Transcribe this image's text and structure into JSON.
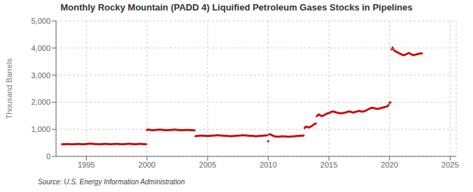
{
  "chart_data": {
    "type": "scatter",
    "title": "Monthly Rocky Mountain (PADD 4) Liquified Petroleum Gases Stocks in Pipelines",
    "ylabel": "Thousand Barrels",
    "annotations": [
      "Source: U.S. Energy Information Administration"
    ],
    "color": "#cc0000",
    "grid": true,
    "xlim": [
      1992.5,
      2025.5
    ],
    "xticks": [
      1995,
      2000,
      2005,
      2010,
      2015,
      2020,
      2025
    ],
    "ylim": [
      0,
      5000
    ],
    "yticks": [
      0,
      {
        "value": 1000,
        "label": "1,000"
      },
      {
        "value": 2000,
        "label": "2,000"
      },
      {
        "value": 3000,
        "label": "3,000"
      },
      {
        "value": 4000,
        "label": "4,000"
      },
      {
        "value": 5000,
        "label": "5,000"
      }
    ],
    "x": [
      1993.0,
      1993.08,
      1993.17,
      1993.25,
      1993.33,
      1993.42,
      1993.5,
      1993.58,
      1993.67,
      1993.75,
      1993.83,
      1993.92,
      1994.0,
      1994.08,
      1994.17,
      1994.25,
      1994.33,
      1994.42,
      1994.5,
      1994.58,
      1994.67,
      1994.75,
      1994.83,
      1994.92,
      1995.0,
      1995.08,
      1995.17,
      1995.25,
      1995.33,
      1995.42,
      1995.5,
      1995.58,
      1995.67,
      1995.75,
      1995.83,
      1995.92,
      1996.0,
      1996.08,
      1996.17,
      1996.25,
      1996.33,
      1996.42,
      1996.5,
      1996.58,
      1996.67,
      1996.75,
      1996.83,
      1996.92,
      1997.0,
      1997.08,
      1997.17,
      1997.25,
      1997.33,
      1997.42,
      1997.5,
      1997.58,
      1997.67,
      1997.75,
      1997.83,
      1997.92,
      1998.0,
      1998.08,
      1998.17,
      1998.25,
      1998.33,
      1998.42,
      1998.5,
      1998.58,
      1998.67,
      1998.75,
      1998.83,
      1998.92,
      1999.0,
      1999.08,
      1999.17,
      1999.25,
      1999.33,
      1999.42,
      1999.5,
      1999.58,
      1999.67,
      1999.75,
      1999.83,
      1999.92,
      2000.0,
      2000.08,
      2000.17,
      2000.25,
      2000.33,
      2000.42,
      2000.5,
      2000.58,
      2000.67,
      2000.75,
      2000.83,
      2000.92,
      2001.0,
      2001.08,
      2001.17,
      2001.25,
      2001.33,
      2001.42,
      2001.5,
      2001.58,
      2001.67,
      2001.75,
      2001.83,
      2001.92,
      2002.0,
      2002.08,
      2002.17,
      2002.25,
      2002.33,
      2002.42,
      2002.5,
      2002.58,
      2002.67,
      2002.75,
      2002.83,
      2002.92,
      2003.0,
      2003.08,
      2003.17,
      2003.25,
      2003.33,
      2003.42,
      2003.5,
      2003.58,
      2003.67,
      2003.75,
      2003.83,
      2003.92,
      2004.0,
      2004.08,
      2004.17,
      2004.25,
      2004.33,
      2004.42,
      2004.5,
      2004.58,
      2004.67,
      2004.75,
      2004.83,
      2004.92,
      2005.0,
      2005.08,
      2005.17,
      2005.25,
      2005.33,
      2005.42,
      2005.5,
      2005.58,
      2005.67,
      2005.75,
      2005.83,
      2005.92,
      2006.0,
      2006.08,
      2006.17,
      2006.25,
      2006.33,
      2006.42,
      2006.5,
      2006.58,
      2006.67,
      2006.75,
      2006.83,
      2006.92,
      2007.0,
      2007.08,
      2007.17,
      2007.25,
      2007.33,
      2007.42,
      2007.5,
      2007.58,
      2007.67,
      2007.75,
      2007.83,
      2007.92,
      2008.0,
      2008.08,
      2008.17,
      2008.25,
      2008.33,
      2008.42,
      2008.5,
      2008.58,
      2008.67,
      2008.75,
      2008.83,
      2008.92,
      2009.0,
      2009.08,
      2009.17,
      2009.25,
      2009.33,
      2009.42,
      2009.5,
      2009.58,
      2009.67,
      2009.75,
      2009.83,
      2009.92,
      2010.0,
      2010.08,
      2010.17,
      2010.25,
      2010.33,
      2010.42,
      2010.5,
      2010.58,
      2010.67,
      2010.75,
      2010.83,
      2010.92,
      2011.0,
      2011.08,
      2011.17,
      2011.25,
      2011.33,
      2011.42,
      2011.5,
      2011.58,
      2011.67,
      2011.75,
      2011.83,
      2011.92,
      2012.0,
      2012.08,
      2012.17,
      2012.25,
      2012.33,
      2012.42,
      2012.5,
      2012.58,
      2012.67,
      2012.75,
      2012.83,
      2012.92,
      2013.0,
      2013.08,
      2013.17,
      2013.25,
      2013.33,
      2013.42,
      2013.5,
      2013.58,
      2013.67,
      2013.75,
      2013.83,
      2013.92,
      2014.0,
      2014.08,
      2014.17,
      2014.25,
      2014.33,
      2014.42,
      2014.5,
      2014.58,
      2014.67,
      2014.75,
      2014.83,
      2014.92,
      2015.0,
      2015.08,
      2015.17,
      2015.25,
      2015.33,
      2015.42,
      2015.5,
      2015.58,
      2015.67,
      2015.75,
      2015.83,
      2015.92,
      2016.0,
      2016.08,
      2016.17,
      2016.25,
      2016.33,
      2016.42,
      2016.5,
      2016.58,
      2016.67,
      2016.75,
      2016.83,
      2016.92,
      2017.0,
      2017.08,
      2017.17,
      2017.25,
      2017.33,
      2017.42,
      2017.5,
      2017.58,
      2017.67,
      2017.75,
      2017.83,
      2017.92,
      2018.0,
      2018.08,
      2018.17,
      2018.25,
      2018.33,
      2018.42,
      2018.5,
      2018.58,
      2018.67,
      2018.75,
      2018.83,
      2018.92,
      2019.0,
      2019.08,
      2019.17,
      2019.25,
      2019.33,
      2019.42,
      2019.5,
      2019.58,
      2019.67,
      2019.75,
      2019.83,
      2019.92,
      2020.0,
      2020.08,
      2020.17,
      2020.25,
      2020.33,
      2020.42,
      2020.5,
      2020.58,
      2020.67,
      2020.75,
      2020.83,
      2020.92,
      2021.0,
      2021.08,
      2021.17,
      2021.25,
      2021.33,
      2021.42,
      2021.5,
      2021.58,
      2021.67,
      2021.75,
      2021.83,
      2021.92,
      2022.0,
      2022.08,
      2022.17,
      2022.25,
      2022.33,
      2022.42,
      2022.5,
      2022.58,
      2022.67
    ],
    "values": [
      450,
      445,
      448,
      450,
      455,
      460,
      458,
      452,
      450,
      448,
      445,
      450,
      452,
      455,
      458,
      460,
      462,
      458,
      455,
      452,
      450,
      448,
      452,
      455,
      458,
      462,
      465,
      468,
      470,
      468,
      465,
      462,
      460,
      458,
      455,
      452,
      450,
      448,
      452,
      455,
      458,
      460,
      462,
      465,
      462,
      458,
      455,
      452,
      450,
      452,
      455,
      458,
      460,
      462,
      465,
      462,
      458,
      455,
      452,
      450,
      448,
      452,
      455,
      458,
      462,
      465,
      468,
      465,
      462,
      458,
      455,
      452,
      450,
      452,
      455,
      458,
      462,
      465,
      462,
      458,
      455,
      452,
      450,
      448,
      980,
      990,
      985,
      980,
      975,
      970,
      968,
      972,
      975,
      978,
      982,
      985,
      988,
      990,
      985,
      980,
      978,
      975,
      972,
      970,
      968,
      972,
      975,
      978,
      980,
      982,
      985,
      988,
      990,
      985,
      980,
      978,
      975,
      972,
      970,
      968,
      972,
      975,
      978,
      980,
      982,
      978,
      975,
      972,
      970,
      968,
      965,
      962,
      750,
      755,
      758,
      762,
      765,
      768,
      770,
      768,
      765,
      762,
      758,
      755,
      752,
      755,
      758,
      762,
      765,
      768,
      770,
      772,
      775,
      778,
      780,
      778,
      775,
      772,
      770,
      768,
      765,
      762,
      760,
      758,
      755,
      752,
      750,
      748,
      750,
      752,
      755,
      758,
      762,
      765,
      768,
      770,
      772,
      775,
      778,
      780,
      778,
      775,
      772,
      770,
      768,
      765,
      762,
      760,
      758,
      755,
      752,
      750,
      748,
      750,
      752,
      755,
      758,
      762,
      765,
      768,
      770,
      772,
      775,
      778,
      560,
      820,
      810,
      800,
      780,
      760,
      750,
      740,
      730,
      725,
      728,
      730,
      735,
      740,
      745,
      742,
      738,
      735,
      732,
      730,
      728,
      726,
      730,
      735,
      738,
      742,
      745,
      748,
      752,
      755,
      758,
      760,
      762,
      765,
      768,
      770,
      1050,
      1100,
      1080,
      1090,
      1070,
      1080,
      1100,
      1120,
      1150,
      1180,
      1200,
      1220,
      1480,
      1520,
      1550,
      1530,
      1510,
      1490,
      1500,
      1520,
      1540,
      1560,
      1580,
      1600,
      1600,
      1620,
      1640,
      1650,
      1660,
      1650,
      1640,
      1630,
      1620,
      1610,
      1600,
      1595,
      1590,
      1595,
      1600,
      1610,
      1620,
      1630,
      1640,
      1650,
      1660,
      1650,
      1640,
      1630,
      1620,
      1630,
      1640,
      1650,
      1660,
      1670,
      1680,
      1670,
      1660,
      1650,
      1660,
      1670,
      1680,
      1700,
      1720,
      1740,
      1760,
      1780,
      1790,
      1800,
      1790,
      1780,
      1770,
      1760,
      1750,
      1760,
      1770,
      1780,
      1790,
      1800,
      1810,
      1820,
      1830,
      1840,
      1850,
      1900,
      1980,
      2000,
      3950,
      4020,
      3950,
      3900,
      3880,
      3860,
      3840,
      3820,
      3800,
      3780,
      3760,
      3750,
      3740,
      3750,
      3760,
      3780,
      3800,
      3820,
      3800,
      3780,
      3760,
      3750,
      3740,
      3750,
      3760,
      3770,
      3780,
      3790,
      3800,
      3810,
      3800
    ]
  }
}
